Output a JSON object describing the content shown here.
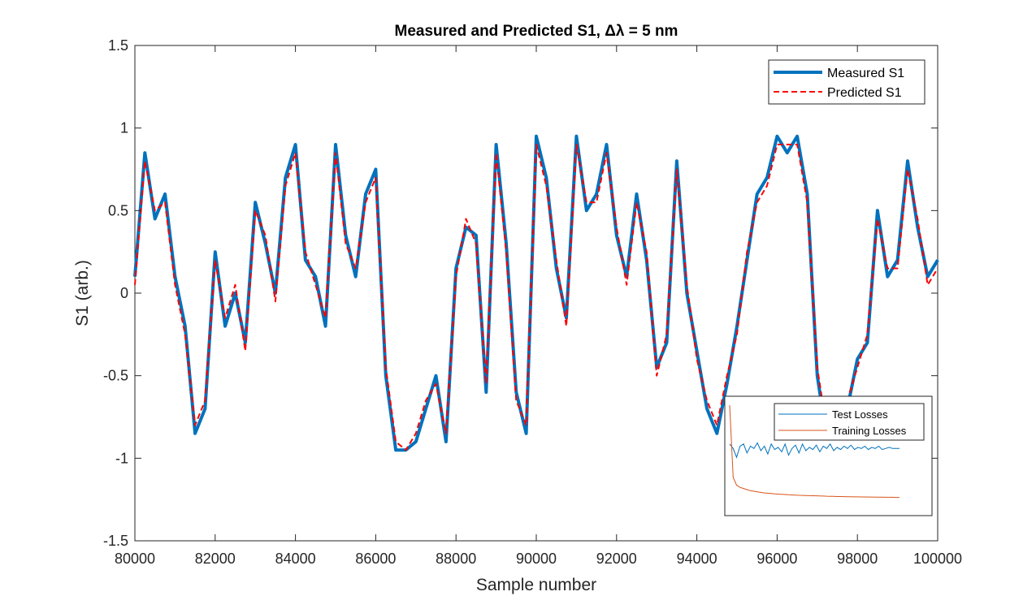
{
  "chart_data": [
    {
      "type": "line",
      "title": "Measured and Predicted S1, Δλ = 5 nm",
      "xlabel": "Sample number",
      "ylabel": "S1 (arb.)",
      "xlim": [
        80000,
        100000
      ],
      "ylim": [
        -1.5,
        1.5
      ],
      "x_ticks": [
        "80000",
        "82000",
        "84000",
        "86000",
        "88000",
        "90000",
        "92000",
        "94000",
        "96000",
        "98000",
        "100000"
      ],
      "y_ticks": [
        "1.5",
        "1",
        "0.5",
        "0",
        "-0.5",
        "-1",
        "-1.5"
      ],
      "grid": false,
      "legend_position": "top-right",
      "x": [
        80000,
        80250,
        80500,
        80750,
        81000,
        81250,
        81500,
        81750,
        82000,
        82250,
        82500,
        82750,
        83000,
        83250,
        83500,
        83750,
        84000,
        84250,
        84500,
        84750,
        85000,
        85250,
        85500,
        85750,
        86000,
        86250,
        86500,
        86750,
        87000,
        87250,
        87500,
        87750,
        88000,
        88250,
        88500,
        88750,
        89000,
        89250,
        89500,
        89750,
        90000,
        90250,
        90500,
        90750,
        91000,
        91250,
        91500,
        91750,
        92000,
        92250,
        92500,
        92750,
        93000,
        93250,
        93500,
        93750,
        94000,
        94250,
        94500,
        94750,
        95000,
        95250,
        95500,
        95750,
        96000,
        96250,
        96500,
        96750,
        97000,
        97250,
        97500,
        97750,
        98000,
        98250,
        98500,
        98750,
        99000,
        99250,
        99500,
        99750,
        100000
      ],
      "series": [
        {
          "name": "Measured S1",
          "color": "#0072bd",
          "style": "solid",
          "values": [
            0.1,
            0.85,
            0.45,
            0.6,
            0.1,
            -0.2,
            -0.85,
            -0.7,
            0.25,
            -0.2,
            0.0,
            -0.3,
            0.55,
            0.3,
            0.0,
            0.7,
            0.9,
            0.2,
            0.1,
            -0.2,
            0.9,
            0.35,
            0.1,
            0.6,
            0.75,
            -0.5,
            -0.95,
            -0.95,
            -0.9,
            -0.7,
            -0.5,
            -0.9,
            0.15,
            0.4,
            0.35,
            -0.6,
            0.9,
            0.3,
            -0.6,
            -0.85,
            0.95,
            0.7,
            0.15,
            -0.15,
            0.95,
            0.5,
            0.6,
            0.9,
            0.35,
            0.1,
            0.6,
            0.2,
            -0.45,
            -0.3,
            0.8,
            0.0,
            -0.35,
            -0.7,
            -0.85,
            -0.55,
            -0.2,
            0.2,
            0.6,
            0.7,
            0.95,
            0.85,
            0.95,
            0.6,
            -0.5,
            -0.9,
            -0.8,
            -0.7,
            -0.4,
            -0.3,
            0.5,
            0.1,
            0.2,
            0.8,
            0.4,
            0.1,
            0.2
          ]
        },
        {
          "name": "Predicted S1",
          "color": "#ff0000",
          "style": "dashed",
          "values": [
            0.05,
            0.8,
            0.5,
            0.55,
            0.05,
            -0.25,
            -0.8,
            -0.65,
            0.2,
            -0.15,
            0.05,
            -0.35,
            0.5,
            0.35,
            -0.05,
            0.65,
            0.85,
            0.25,
            0.05,
            -0.15,
            0.85,
            0.3,
            0.15,
            0.55,
            0.7,
            -0.45,
            -0.9,
            -0.95,
            -0.85,
            -0.65,
            -0.55,
            -0.85,
            0.1,
            0.45,
            0.3,
            -0.55,
            0.85,
            0.25,
            -0.65,
            -0.8,
            0.9,
            0.65,
            0.2,
            -0.2,
            0.9,
            0.55,
            0.55,
            0.85,
            0.4,
            0.05,
            0.55,
            0.25,
            -0.5,
            -0.25,
            0.75,
            0.05,
            -0.4,
            -0.65,
            -0.8,
            -0.5,
            -0.25,
            0.25,
            0.55,
            0.65,
            0.9,
            0.9,
            0.9,
            0.55,
            -0.45,
            -0.85,
            -0.75,
            -0.65,
            -0.45,
            -0.25,
            0.45,
            0.15,
            0.15,
            0.75,
            0.45,
            0.05,
            0.15
          ]
        }
      ]
    },
    {
      "type": "line",
      "title": "",
      "xlabel": "",
      "ylabel": "",
      "legend_position": "top-right",
      "grid": false,
      "x": [
        1,
        2,
        3,
        4,
        5,
        6,
        7,
        8,
        9,
        10,
        11,
        12,
        13,
        14,
        15,
        16,
        17,
        18,
        19,
        20,
        21,
        22,
        23,
        24,
        25,
        26,
        27,
        28,
        29,
        30,
        31,
        32,
        33,
        34,
        35,
        36,
        37,
        38,
        39,
        40,
        41,
        42,
        43,
        44,
        45,
        46,
        47,
        48,
        49,
        50
      ],
      "ylim": [
        0,
        1
      ],
      "series": [
        {
          "name": "Test Losses",
          "color": "#0072bd",
          "values": [
            0.6,
            0.56,
            0.48,
            0.58,
            0.6,
            0.52,
            0.58,
            0.56,
            0.61,
            0.54,
            0.58,
            0.51,
            0.6,
            0.55,
            0.57,
            0.53,
            0.6,
            0.5,
            0.56,
            0.59,
            0.52,
            0.6,
            0.54,
            0.57,
            0.55,
            0.59,
            0.53,
            0.58,
            0.56,
            0.6,
            0.54,
            0.57,
            0.55,
            0.58,
            0.56,
            0.59,
            0.55,
            0.57,
            0.56,
            0.58,
            0.55,
            0.57,
            0.56,
            0.58,
            0.55,
            0.56,
            0.57,
            0.56,
            0.56,
            0.56
          ]
        },
        {
          "name": "Training Losses",
          "color": "#d95319",
          "values": [
            0.95,
            0.3,
            0.23,
            0.21,
            0.2,
            0.19,
            0.18,
            0.175,
            0.17,
            0.165,
            0.16,
            0.158,
            0.155,
            0.152,
            0.15,
            0.148,
            0.146,
            0.144,
            0.142,
            0.14,
            0.139,
            0.138,
            0.137,
            0.136,
            0.135,
            0.134,
            0.133,
            0.132,
            0.131,
            0.13,
            0.129,
            0.128,
            0.128,
            0.127,
            0.126,
            0.126,
            0.125,
            0.125,
            0.124,
            0.124,
            0.123,
            0.123,
            0.122,
            0.122,
            0.122,
            0.121,
            0.121,
            0.121,
            0.12,
            0.12
          ]
        }
      ]
    }
  ]
}
